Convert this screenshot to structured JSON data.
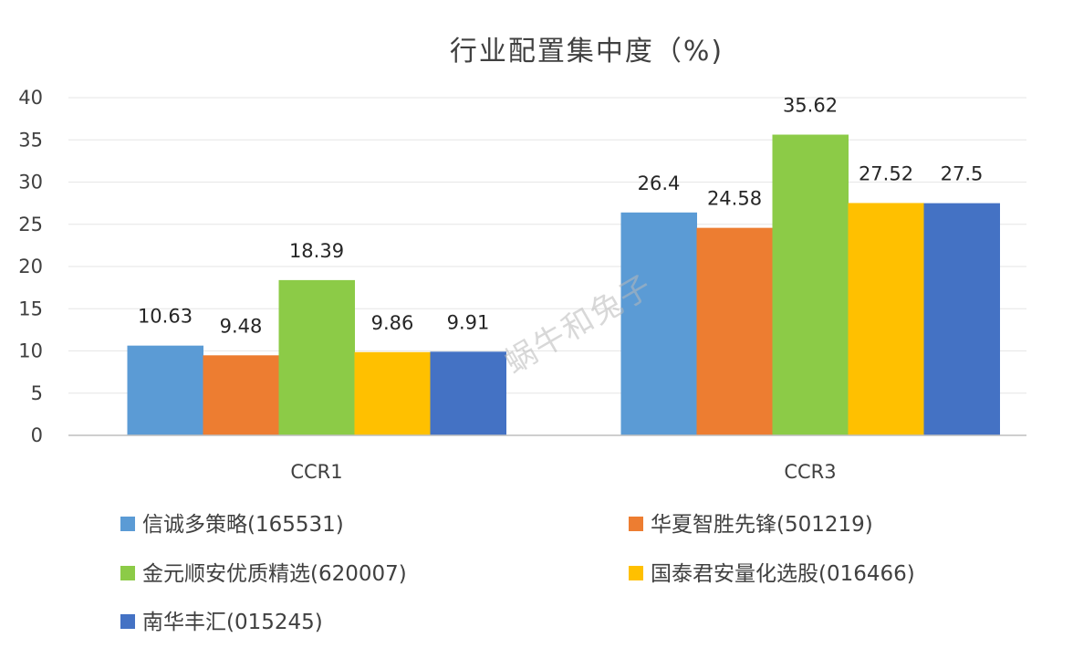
{
  "chart_data": {
    "type": "bar",
    "title": "行业配置集中度（%)",
    "categories": [
      "CCR1",
      "CCR3"
    ],
    "ylim": [
      0,
      40
    ],
    "yticks": [
      "0",
      "5",
      "10",
      "15",
      "20",
      "25",
      "30",
      "35",
      "40"
    ],
    "grid": true,
    "legend_position": "bottom",
    "series": [
      {
        "name": "信诚多策略(165531)",
        "values": [
          10.63,
          26.4
        ],
        "labels": [
          "10.63",
          "26.4"
        ],
        "color": "#5B9BD5"
      },
      {
        "name": "华夏智胜先锋(501219)",
        "values": [
          9.48,
          24.58
        ],
        "labels": [
          "9.48",
          "24.58"
        ],
        "color": "#ED7D31"
      },
      {
        "name": "金元顺安优质精选(620007)",
        "values": [
          18.39,
          35.62
        ],
        "labels": [
          "18.39",
          "35.62"
        ],
        "color": "#8CCB47"
      },
      {
        "name": "国泰君安量化选股(016466)",
        "values": [
          9.86,
          27.52
        ],
        "labels": [
          "9.86",
          "27.52"
        ],
        "color": "#FFC000"
      },
      {
        "name": "南华丰汇(015245)",
        "values": [
          9.91,
          27.5
        ],
        "labels": [
          "9.91",
          "27.5"
        ],
        "color": "#4472C4"
      }
    ]
  },
  "watermark": "蜗牛和兔子"
}
